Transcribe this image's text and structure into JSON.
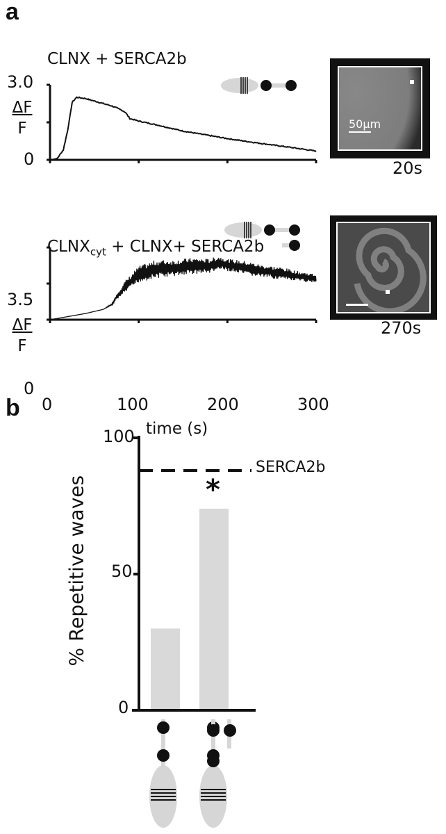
{
  "panel_a": {
    "letter": "a",
    "top": {
      "title": "CLNX + SERCA2b",
      "ylabel_num": "ΔF",
      "ylabel_den": "F",
      "image_time": "20s",
      "scale_bar": "50μm"
    },
    "bottom": {
      "title_main": "CLNX",
      "title_sub": "cyt",
      "title_rest": " + CLNX+ SERCA2b",
      "ylabel_num": "ΔF",
      "ylabel_den": "F",
      "image_time": "270s"
    },
    "xlabel": "time (s)"
  },
  "panel_b": {
    "letter": "b",
    "ylabel": "% Repetitive waves",
    "reference_label": "SERCA2b",
    "significance_marker": "*"
  },
  "chart_data": [
    {
      "type": "line",
      "title": "CLNX + SERCA2b",
      "ylabel": "ΔF/F",
      "xlim": [
        0,
        300
      ],
      "ylim": [
        0,
        3.0
      ],
      "yticks": [
        "0",
        "3.0"
      ],
      "x": [
        0,
        8,
        15,
        20,
        25,
        30,
        40,
        50,
        60,
        70,
        80,
        85,
        90,
        100,
        120,
        150,
        175,
        200,
        225,
        250,
        275,
        300
      ],
      "y": [
        0,
        0.05,
        0.4,
        1.2,
        2.3,
        2.5,
        2.45,
        2.35,
        2.25,
        2.15,
        2.0,
        1.9,
        1.65,
        1.55,
        1.4,
        1.15,
        1.0,
        0.85,
        0.72,
        0.6,
        0.48,
        0.35
      ]
    },
    {
      "type": "line",
      "title": "CLNXcyt + CLNX+ SERCA2b",
      "ylabel": "ΔF/F",
      "xlabel": "time (s)",
      "xlim": [
        0,
        300
      ],
      "ylim": [
        0,
        3.5
      ],
      "xticks": [
        "0",
        "100",
        "200",
        "300"
      ],
      "yticks": [
        "0",
        "3.5"
      ],
      "x": [
        0,
        20,
        40,
        60,
        70,
        75,
        85,
        100,
        120,
        140,
        160,
        180,
        190,
        200,
        220,
        240,
        260,
        280,
        300
      ],
      "y": [
        0,
        0.15,
        0.3,
        0.5,
        0.75,
        1.1,
        1.6,
        2.2,
        2.45,
        2.5,
        2.6,
        2.6,
        2.75,
        2.65,
        2.5,
        2.35,
        2.25,
        2.1,
        2.0
      ],
      "oscillation_amplitude": [
        0,
        0,
        0,
        0,
        0.05,
        0.15,
        0.3,
        0.4,
        0.45,
        0.4,
        0.4,
        0.35,
        0.35,
        0.3,
        0.35,
        0.3,
        0.3,
        0.25,
        0.2
      ]
    },
    {
      "type": "bar",
      "ylabel": "% Repetitive waves",
      "ylim": [
        0,
        100
      ],
      "yticks": [
        "0",
        "50",
        "100"
      ],
      "categories": [
        "CLNXcyt-like construct",
        "CLNX + CLNXcyt"
      ],
      "values": [
        30,
        74
      ],
      "reference_line": {
        "label": "SERCA2b",
        "value": 88,
        "style": "dashed"
      },
      "significance": [
        false,
        true
      ],
      "bar_color": "#d9d9d9"
    }
  ]
}
